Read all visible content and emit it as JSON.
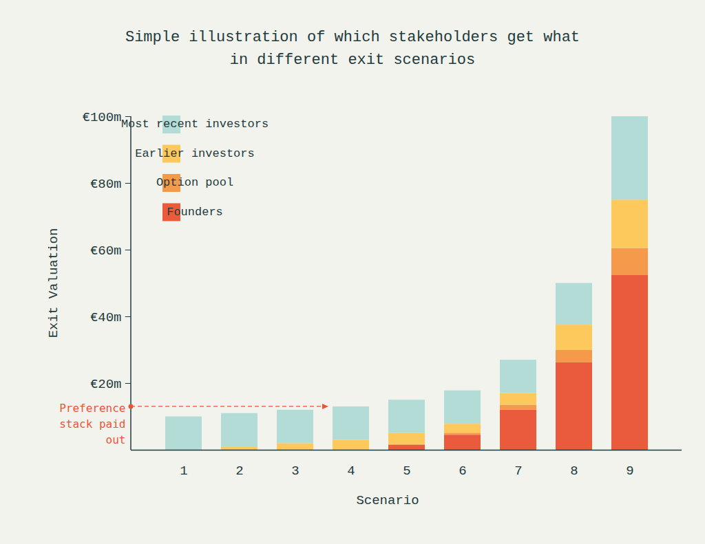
{
  "chart_data": {
    "type": "bar",
    "title": "Simple illustration of which stakeholders get what in different exit scenarios",
    "x_label": "Scenario",
    "y_label": "Exit Valuation",
    "categories": [
      "1",
      "2",
      "3",
      "4",
      "5",
      "6",
      "7",
      "8",
      "9"
    ],
    "series": [
      {
        "name": "Most recent investors",
        "color": "#b2dcd5",
        "values": [
          10,
          10,
          10,
          10,
          10,
          10,
          10,
          12.5,
          25
        ]
      },
      {
        "name": "Earlier investors",
        "color": "#fdc95d",
        "values": [
          0,
          1,
          2,
          3,
          3.3,
          2.7,
          3.5,
          7.6,
          14.5
        ]
      },
      {
        "name": "Option pool",
        "color": "#f59a4a",
        "values": [
          0,
          0,
          0,
          0,
          0.2,
          0.6,
          1.5,
          3.7,
          8
        ]
      },
      {
        "name": "Founders",
        "color": "#ea5a3d",
        "values": [
          0,
          0,
          0,
          0,
          1.5,
          4.5,
          12,
          26.2,
          52.5
        ]
      }
    ],
    "ylim": [
      0,
      100
    ],
    "yticks": [
      {
        "value": 20,
        "label": "€20m"
      },
      {
        "value": 40,
        "label": "€40m"
      },
      {
        "value": 60,
        "label": "€60m"
      },
      {
        "value": 80,
        "label": "€80m"
      },
      {
        "value": 100,
        "label": "€100m"
      }
    ],
    "stacked": true,
    "legend": "top-left",
    "grid": false,
    "annotations": [
      {
        "text": "Preference stack paid out",
        "x": "4",
        "y": 13
      }
    ]
  }
}
